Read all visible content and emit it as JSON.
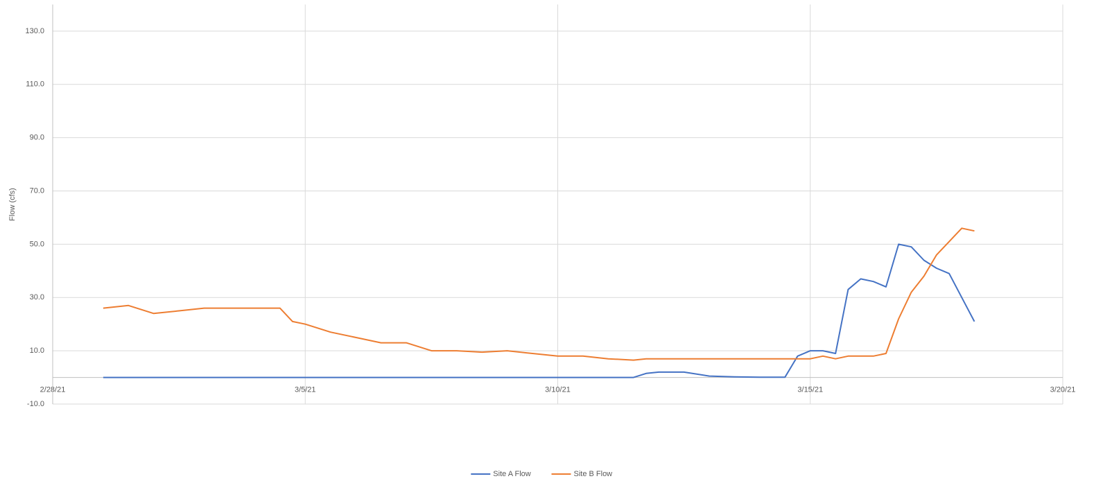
{
  "chart_data": {
    "type": "line",
    "y_label": "Flow (cfs)",
    "x": [
      "3/1/21 00:00",
      "3/1/21 12:00",
      "3/2/21 00:00",
      "3/2/21 12:00",
      "3/3/21 00:00",
      "3/3/21 12:00",
      "3/4/21 00:00",
      "3/4/21 12:00",
      "3/4/21 18:00",
      "3/5/21 00:00",
      "3/5/21 12:00",
      "3/6/21 00:00",
      "3/6/21 12:00",
      "3/7/21 00:00",
      "3/7/21 12:00",
      "3/8/21 00:00",
      "3/8/21 12:00",
      "3/9/21 00:00",
      "3/9/21 12:00",
      "3/10/21 00:00",
      "3/10/21 12:00",
      "3/11/21 00:00",
      "3/11/21 12:00",
      "3/11/21 18:00",
      "3/12/21 00:00",
      "3/12/21 12:00",
      "3/13/21 00:00",
      "3/13/21 12:00",
      "3/14/21 00:00",
      "3/14/21 12:00",
      "3/14/21 18:00",
      "3/15/21 00:00",
      "3/15/21 06:00",
      "3/15/21 12:00",
      "3/15/21 18:00",
      "3/16/21 00:00",
      "3/16/21 06:00",
      "3/16/21 12:00",
      "3/16/21 18:00",
      "3/17/21 00:00",
      "3/17/21 06:00",
      "3/17/21 12:00",
      "3/17/21 18:00",
      "3/18/21 00:00",
      "3/18/21 06:00"
    ],
    "series": [
      {
        "name": "Site A Flow",
        "color": "#4472c4",
        "values": [
          0,
          0,
          0,
          0,
          0,
          0,
          0,
          0,
          0,
          0,
          0,
          0,
          0,
          0,
          0,
          0,
          0,
          0,
          0,
          0,
          0,
          0,
          0,
          1.5,
          2,
          2,
          0.5,
          0.2,
          0.1,
          0.1,
          8,
          10,
          10,
          9,
          33,
          37,
          36,
          34,
          50,
          49,
          44,
          41,
          39,
          30,
          21
        ]
      },
      {
        "name": "Site B Flow",
        "color": "#ed7d31",
        "values": [
          26,
          27,
          24,
          25,
          26,
          26,
          26,
          26,
          21,
          20,
          17,
          15,
          13,
          13,
          10,
          10,
          9.5,
          10,
          9,
          8,
          8,
          7,
          6.5,
          7,
          7,
          7,
          7,
          7,
          7,
          7,
          7,
          7,
          8,
          7,
          8,
          8,
          8,
          9,
          22,
          32,
          38,
          46,
          51,
          56,
          55
        ]
      }
    ],
    "xlim": [
      "2/28/21",
      "3/20/21"
    ],
    "xticks": [
      "2/28/21",
      "3/5/21",
      "3/10/21",
      "3/15/21",
      "3/20/21"
    ],
    "ylim": [
      -10,
      140
    ],
    "yticks": [
      {
        "value": -10,
        "label": "-10.0"
      },
      {
        "value": 10,
        "label": "10.0"
      },
      {
        "value": 30,
        "label": "30.0"
      },
      {
        "value": 50,
        "label": "50.0"
      },
      {
        "value": 70,
        "label": "70.0"
      },
      {
        "value": 90,
        "label": "90.0"
      },
      {
        "value": 110,
        "label": "110.0"
      },
      {
        "value": 130,
        "label": "130.0"
      }
    ],
    "grid": true,
    "legend": "bottom"
  }
}
